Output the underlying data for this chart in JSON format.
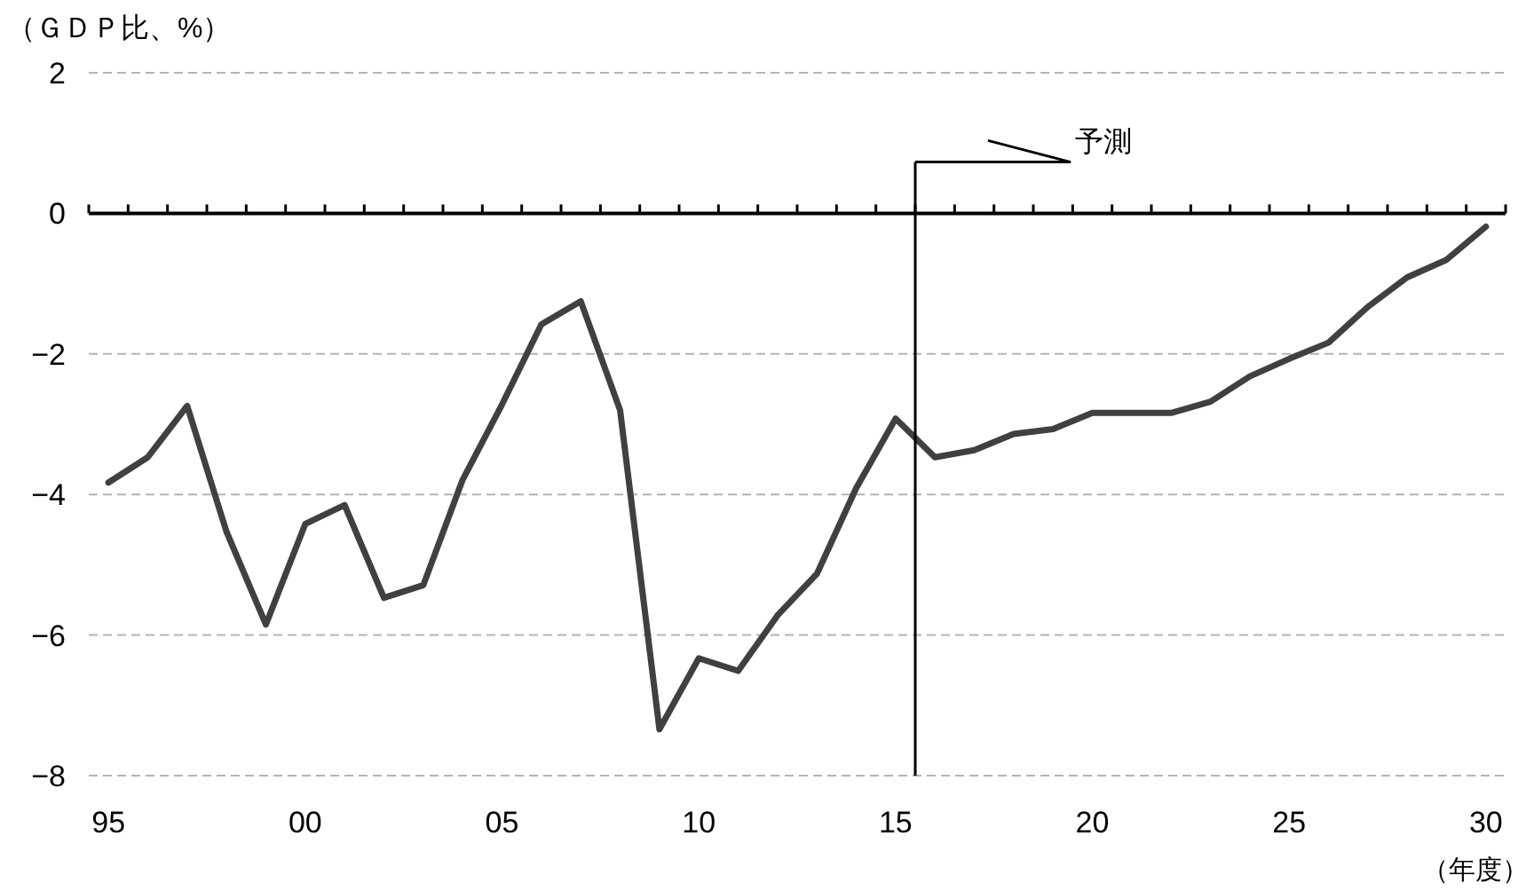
{
  "chart_data": {
    "type": "line",
    "ylabel": "（ＧＤＰ比、%）",
    "xlabel": "（年度）",
    "x": [
      1995,
      1996,
      1997,
      1998,
      1999,
      2000,
      2001,
      2002,
      2003,
      2004,
      2005,
      2006,
      2007,
      2008,
      2009,
      2010,
      2011,
      2012,
      2013,
      2014,
      2015,
      2016,
      2017,
      2018,
      2019,
      2020,
      2021,
      2022,
      2023,
      2024,
      2025,
      2026,
      2027,
      2028,
      2029,
      2030
    ],
    "series": [
      {
        "color": "#404040",
        "values": [
          -3.83,
          -3.47,
          -2.74,
          -4.53,
          -5.85,
          -4.42,
          -4.15,
          -5.47,
          -5.29,
          -3.79,
          -2.72,
          -1.58,
          -1.25,
          -2.8,
          -7.34,
          -6.33,
          -6.51,
          -5.72,
          -5.13,
          -3.91,
          -2.92,
          -3.47,
          -3.37,
          -3.14,
          -3.07,
          -2.84,
          -2.84,
          -2.84,
          -2.68,
          -2.32,
          -2.07,
          -1.84,
          -1.33,
          -0.91,
          -0.66,
          -0.19
        ]
      }
    ],
    "xlim": [
      1994.5,
      2030.5
    ],
    "xticks": [
      {
        "value": 1995,
        "label": "95"
      },
      {
        "value": 2000,
        "label": "00"
      },
      {
        "value": 2005,
        "label": "05"
      },
      {
        "value": 2010,
        "label": "10"
      },
      {
        "value": 2015,
        "label": "15"
      },
      {
        "value": 2020,
        "label": "20"
      },
      {
        "value": 2025,
        "label": "25"
      },
      {
        "value": 2030,
        "label": "30"
      },
      {
        "value": 1994.5,
        "label": null
      },
      {
        "value": 1995.5,
        "label": null
      },
      {
        "value": 1996.5,
        "label": null
      },
      {
        "value": 1997.5,
        "label": null
      },
      {
        "value": 1998.5,
        "label": null
      },
      {
        "value": 1999.5,
        "label": null
      },
      {
        "value": 2000.5,
        "label": null
      },
      {
        "value": 2001.5,
        "label": null
      },
      {
        "value": 2002.5,
        "label": null
      },
      {
        "value": 2003.5,
        "label": null
      },
      {
        "value": 2004.5,
        "label": null
      },
      {
        "value": 2005.5,
        "label": null
      },
      {
        "value": 2006.5,
        "label": null
      },
      {
        "value": 2007.5,
        "label": null
      },
      {
        "value": 2008.5,
        "label": null
      },
      {
        "value": 2009.5,
        "label": null
      },
      {
        "value": 2010.5,
        "label": null
      },
      {
        "value": 2011.5,
        "label": null
      },
      {
        "value": 2012.5,
        "label": null
      },
      {
        "value": 2013.5,
        "label": null
      },
      {
        "value": 2014.5,
        "label": null
      },
      {
        "value": 2015.5,
        "label": null
      },
      {
        "value": 2016.5,
        "label": null
      },
      {
        "value": 2017.5,
        "label": null
      },
      {
        "value": 2018.5,
        "label": null
      },
      {
        "value": 2019.5,
        "label": null
      },
      {
        "value": 2020.5,
        "label": null
      },
      {
        "value": 2021.5,
        "label": null
      },
      {
        "value": 2022.5,
        "label": null
      },
      {
        "value": 2023.5,
        "label": null
      },
      {
        "value": 2024.5,
        "label": null
      },
      {
        "value": 2025.5,
        "label": null
      },
      {
        "value": 2026.5,
        "label": null
      },
      {
        "value": 2027.5,
        "label": null
      },
      {
        "value": 2028.5,
        "label": null
      },
      {
        "value": 2029.5,
        "label": null
      },
      {
        "value": 2030.5,
        "label": null
      }
    ],
    "ylim": [
      -8,
      2
    ],
    "yticks": [
      2,
      0,
      -2,
      -4,
      -6,
      -8
    ],
    "grid": "y",
    "ref_lines": [
      {
        "axis": "x",
        "value": 2015.5,
        "label": "予測",
        "color": "#000000"
      }
    ]
  }
}
